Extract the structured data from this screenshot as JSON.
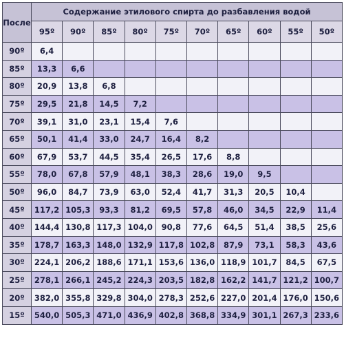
{
  "table": {
    "corner_label": "После",
    "caption": "Содержание этилового спирта до разбавления водой",
    "columns": [
      "95º",
      "90º",
      "85º",
      "80º",
      "75º",
      "70º",
      "65º",
      "60º",
      "55º",
      "50º"
    ],
    "rows": [
      {
        "after": "90º",
        "values": [
          "6,4",
          "",
          "",
          "",
          "",
          "",
          "",
          "",
          "",
          ""
        ]
      },
      {
        "after": "85º",
        "values": [
          "13,3",
          "6,6",
          "",
          "",
          "",
          "",
          "",
          "",
          "",
          ""
        ]
      },
      {
        "after": "80º",
        "values": [
          "20,9",
          "13,8",
          "6,8",
          "",
          "",
          "",
          "",
          "",
          "",
          ""
        ]
      },
      {
        "after": "75º",
        "values": [
          "29,5",
          "21,8",
          "14,5",
          "7,2",
          "",
          "",
          "",
          "",
          "",
          ""
        ]
      },
      {
        "after": "70º",
        "values": [
          "39,1",
          "31,0",
          "23,1",
          "15,4",
          "7,6",
          "",
          "",
          "",
          "",
          ""
        ]
      },
      {
        "after": "65º",
        "values": [
          "50,1",
          "41,4",
          "33,0",
          "24,7",
          "16,4",
          "8,2",
          "",
          "",
          "",
          ""
        ]
      },
      {
        "after": "60º",
        "values": [
          "67,9",
          "53,7",
          "44,5",
          "35,4",
          "26,5",
          "17,6",
          "8,8",
          "",
          "",
          ""
        ]
      },
      {
        "after": "55º",
        "values": [
          "78,0",
          "67,8",
          "57,9",
          "48,1",
          "38,3",
          "28,6",
          "19,0",
          "9,5",
          "",
          ""
        ]
      },
      {
        "after": "50º",
        "values": [
          "96,0",
          "84,7",
          "73,9",
          "63,0",
          "52,4",
          "41,7",
          "31,3",
          "20,5",
          "10,4",
          ""
        ]
      },
      {
        "after": "45º",
        "values": [
          "117,2",
          "105,3",
          "93,3",
          "81,2",
          "69,5",
          "57,8",
          "46,0",
          "34,5",
          "22,9",
          "11,4"
        ]
      },
      {
        "after": "40º",
        "values": [
          "144,4",
          "130,8",
          "117,3",
          "104,0",
          "90,8",
          "77,6",
          "64,5",
          "51,4",
          "38,5",
          "25,6"
        ]
      },
      {
        "after": "35º",
        "values": [
          "178,7",
          "163,3",
          "148,0",
          "132,9",
          "117,8",
          "102,8",
          "87,9",
          "73,1",
          "58,3",
          "43,6"
        ]
      },
      {
        "after": "30º",
        "values": [
          "224,1",
          "206,2",
          "188,6",
          "171,1",
          "153,6",
          "136,0",
          "118,9",
          "101,7",
          "84,5",
          "67,5"
        ]
      },
      {
        "after": "25º",
        "values": [
          "278,1",
          "266,1",
          "245,2",
          "224,3",
          "203,5",
          "182,8",
          "162,2",
          "141,7",
          "121,2",
          "100,7"
        ]
      },
      {
        "after": "20º",
        "values": [
          "382,0",
          "355,8",
          "329,8",
          "304,0",
          "278,3",
          "252,6",
          "227,0",
          "201,4",
          "176,0",
          "150,6"
        ]
      },
      {
        "after": "15º",
        "values": [
          "540,0",
          "505,3",
          "471,0",
          "436,9",
          "402,8",
          "368,8",
          "334,9",
          "301,1",
          "267,3",
          "233,6"
        ]
      }
    ]
  },
  "colors": {
    "header_bg": "#c6c2d6",
    "odd_row_bg": "#f2f2f8",
    "even_row_bg": "#c9c1e6",
    "border": "#4a4a5c",
    "text": "#1e2040"
  }
}
